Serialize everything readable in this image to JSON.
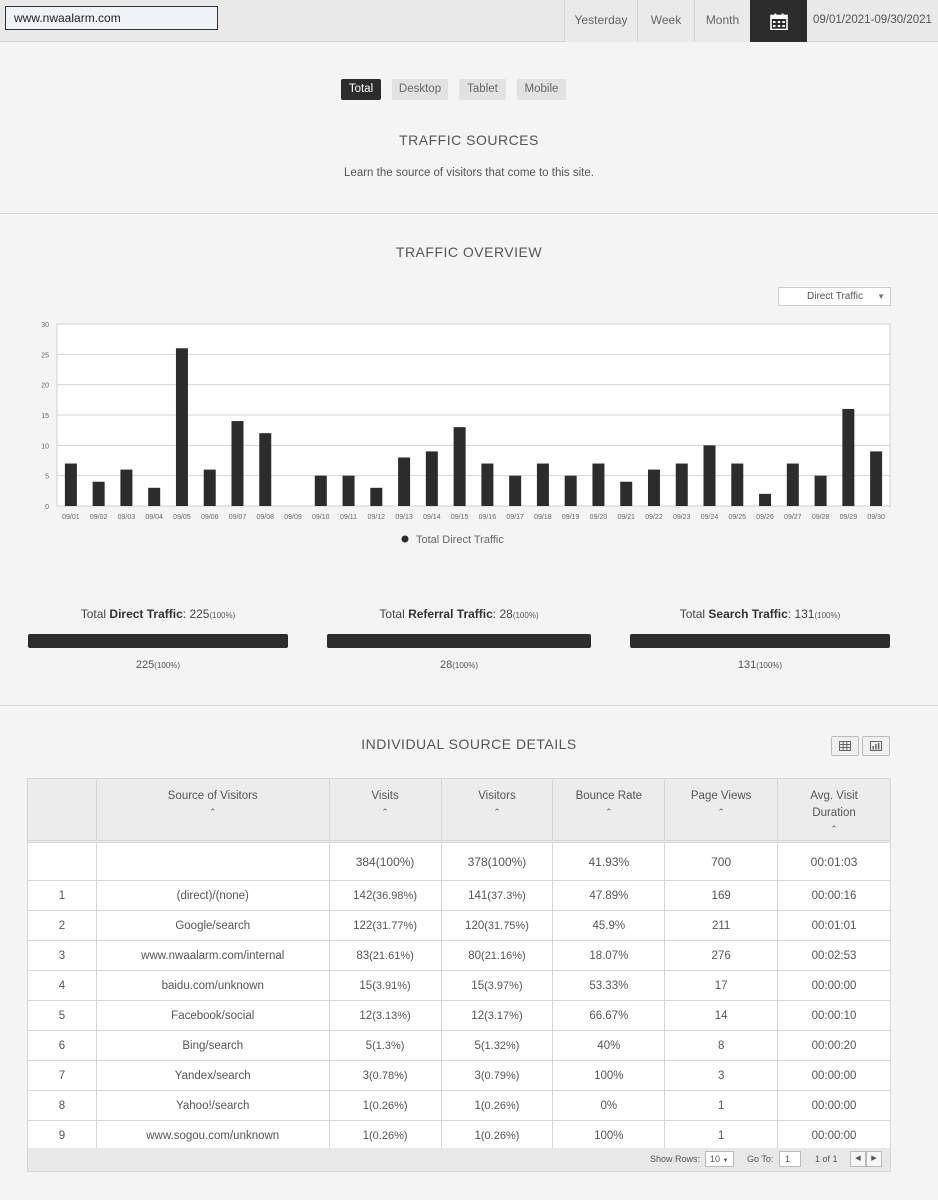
{
  "header": {
    "site": "www.nwaalarm.com",
    "periods": [
      "Yesterday",
      "Week",
      "Month"
    ],
    "calendar_icon": "calendar-icon",
    "date_range": "09/01/2021-09/30/2021"
  },
  "device_tabs": [
    {
      "label": "Total",
      "active": true
    },
    {
      "label": "Desktop",
      "active": false
    },
    {
      "label": "Tablet",
      "active": false
    },
    {
      "label": "Mobile",
      "active": false
    }
  ],
  "traffic_sources": {
    "title": "TRAFFIC SOURCES",
    "subtitle": "Learn the source of visitors that come to this site."
  },
  "overview": {
    "title": "TRAFFIC OVERVIEW",
    "selector": "Direct Traffic"
  },
  "chart_data": {
    "type": "bar",
    "categories": [
      "09/01",
      "09/02",
      "09/03",
      "09/04",
      "09/05",
      "09/06",
      "09/07",
      "09/08",
      "09/09",
      "09/10",
      "09/11",
      "09/12",
      "09/13",
      "09/14",
      "09/15",
      "09/16",
      "09/17",
      "09/18",
      "09/19",
      "09/20",
      "09/21",
      "09/22",
      "09/23",
      "09/24",
      "09/25",
      "09/26",
      "09/27",
      "09/28",
      "09/29",
      "09/30"
    ],
    "series": [
      {
        "name": "Total Direct Traffic",
        "values": [
          7,
          4,
          6,
          3,
          26,
          6,
          14,
          12,
          0,
          5,
          5,
          3,
          8,
          9,
          13,
          7,
          5,
          7,
          5,
          7,
          4,
          6,
          7,
          10,
          7,
          2,
          7,
          5,
          16,
          9
        ]
      }
    ],
    "ylim": [
      0,
      30
    ],
    "yticks": [
      0,
      5,
      10,
      15,
      20,
      25,
      30
    ],
    "grid": true,
    "legend": "bottom",
    "bar_color": "#2c2c2c"
  },
  "totals": [
    {
      "prefix": "Total ",
      "name": "Direct Traffic",
      "value": "225",
      "pct": "(100%)",
      "fill": 1.0
    },
    {
      "prefix": "Total ",
      "name": "Referral Traffic",
      "value": "28",
      "pct": "(100%)",
      "fill": 1.0
    },
    {
      "prefix": "Total ",
      "name": "Search Traffic",
      "value": "131",
      "pct": "(100%)",
      "fill": 1.0
    }
  ],
  "details": {
    "title": "INDIVIDUAL SOURCE DETAILS",
    "view_icons": [
      "table-view-icon",
      "chart-view-icon"
    ],
    "columns": [
      "Source of Visitors",
      "Visits",
      "Visitors",
      "Bounce Rate",
      "Page Views",
      "Avg. Visit Duration"
    ],
    "summary": {
      "visits": "384(100%)",
      "visitors": "378(100%)",
      "bounce": "41.93%",
      "pageviews": "700",
      "duration": "00:01:03"
    },
    "rows": [
      {
        "n": "1",
        "source": "(direct)/(none)",
        "visits": "142",
        "visits_pct": "(36.98%)",
        "visitors": "141",
        "visitors_pct": "(37.3%)",
        "bounce": "47.89%",
        "pageviews": "169",
        "duration": "00:00:16"
      },
      {
        "n": "2",
        "source": "Google/search",
        "visits": "122",
        "visits_pct": "(31.77%)",
        "visitors": "120",
        "visitors_pct": "(31.75%)",
        "bounce": "45.9%",
        "pageviews": "211",
        "duration": "00:01:01"
      },
      {
        "n": "3",
        "source": "www.nwaalarm.com/internal",
        "visits": "83",
        "visits_pct": "(21.61%)",
        "visitors": "80",
        "visitors_pct": "(21.16%)",
        "bounce": "18.07%",
        "pageviews": "276",
        "duration": "00:02:53"
      },
      {
        "n": "4",
        "source": "baidu.com/unknown",
        "visits": "15",
        "visits_pct": "(3.91%)",
        "visitors": "15",
        "visitors_pct": "(3.97%)",
        "bounce": "53.33%",
        "pageviews": "17",
        "duration": "00:00:00"
      },
      {
        "n": "5",
        "source": "Facebook/social",
        "visits": "12",
        "visits_pct": "(3.13%)",
        "visitors": "12",
        "visitors_pct": "(3.17%)",
        "bounce": "66.67%",
        "pageviews": "14",
        "duration": "00:00:10"
      },
      {
        "n": "6",
        "source": "Bing/search",
        "visits": "5",
        "visits_pct": "(1.3%)",
        "visitors": "5",
        "visitors_pct": "(1.32%)",
        "bounce": "40%",
        "pageviews": "8",
        "duration": "00:00:20"
      },
      {
        "n": "7",
        "source": "Yandex/search",
        "visits": "3",
        "visits_pct": "(0.78%)",
        "visitors": "3",
        "visitors_pct": "(0.79%)",
        "bounce": "100%",
        "pageviews": "3",
        "duration": "00:00:00"
      },
      {
        "n": "8",
        "source": "Yahoo!/search",
        "visits": "1",
        "visits_pct": "(0.26%)",
        "visitors": "1",
        "visitors_pct": "(0.26%)",
        "bounce": "0%",
        "pageviews": "1",
        "duration": "00:00:00"
      },
      {
        "n": "9",
        "source": "www.sogou.com/unknown",
        "visits": "1",
        "visits_pct": "(0.26%)",
        "visitors": "1",
        "visitors_pct": "(0.26%)",
        "bounce": "100%",
        "pageviews": "1",
        "duration": "00:00:00"
      }
    ]
  },
  "pagination": {
    "show_rows_label": "Show Rows:",
    "show_rows": "10",
    "goto_label": "Go To:",
    "goto_value": "1",
    "page_info": "1 of 1",
    "prev_icon": "chevron-left-icon",
    "next_icon": "chevron-right-icon"
  }
}
